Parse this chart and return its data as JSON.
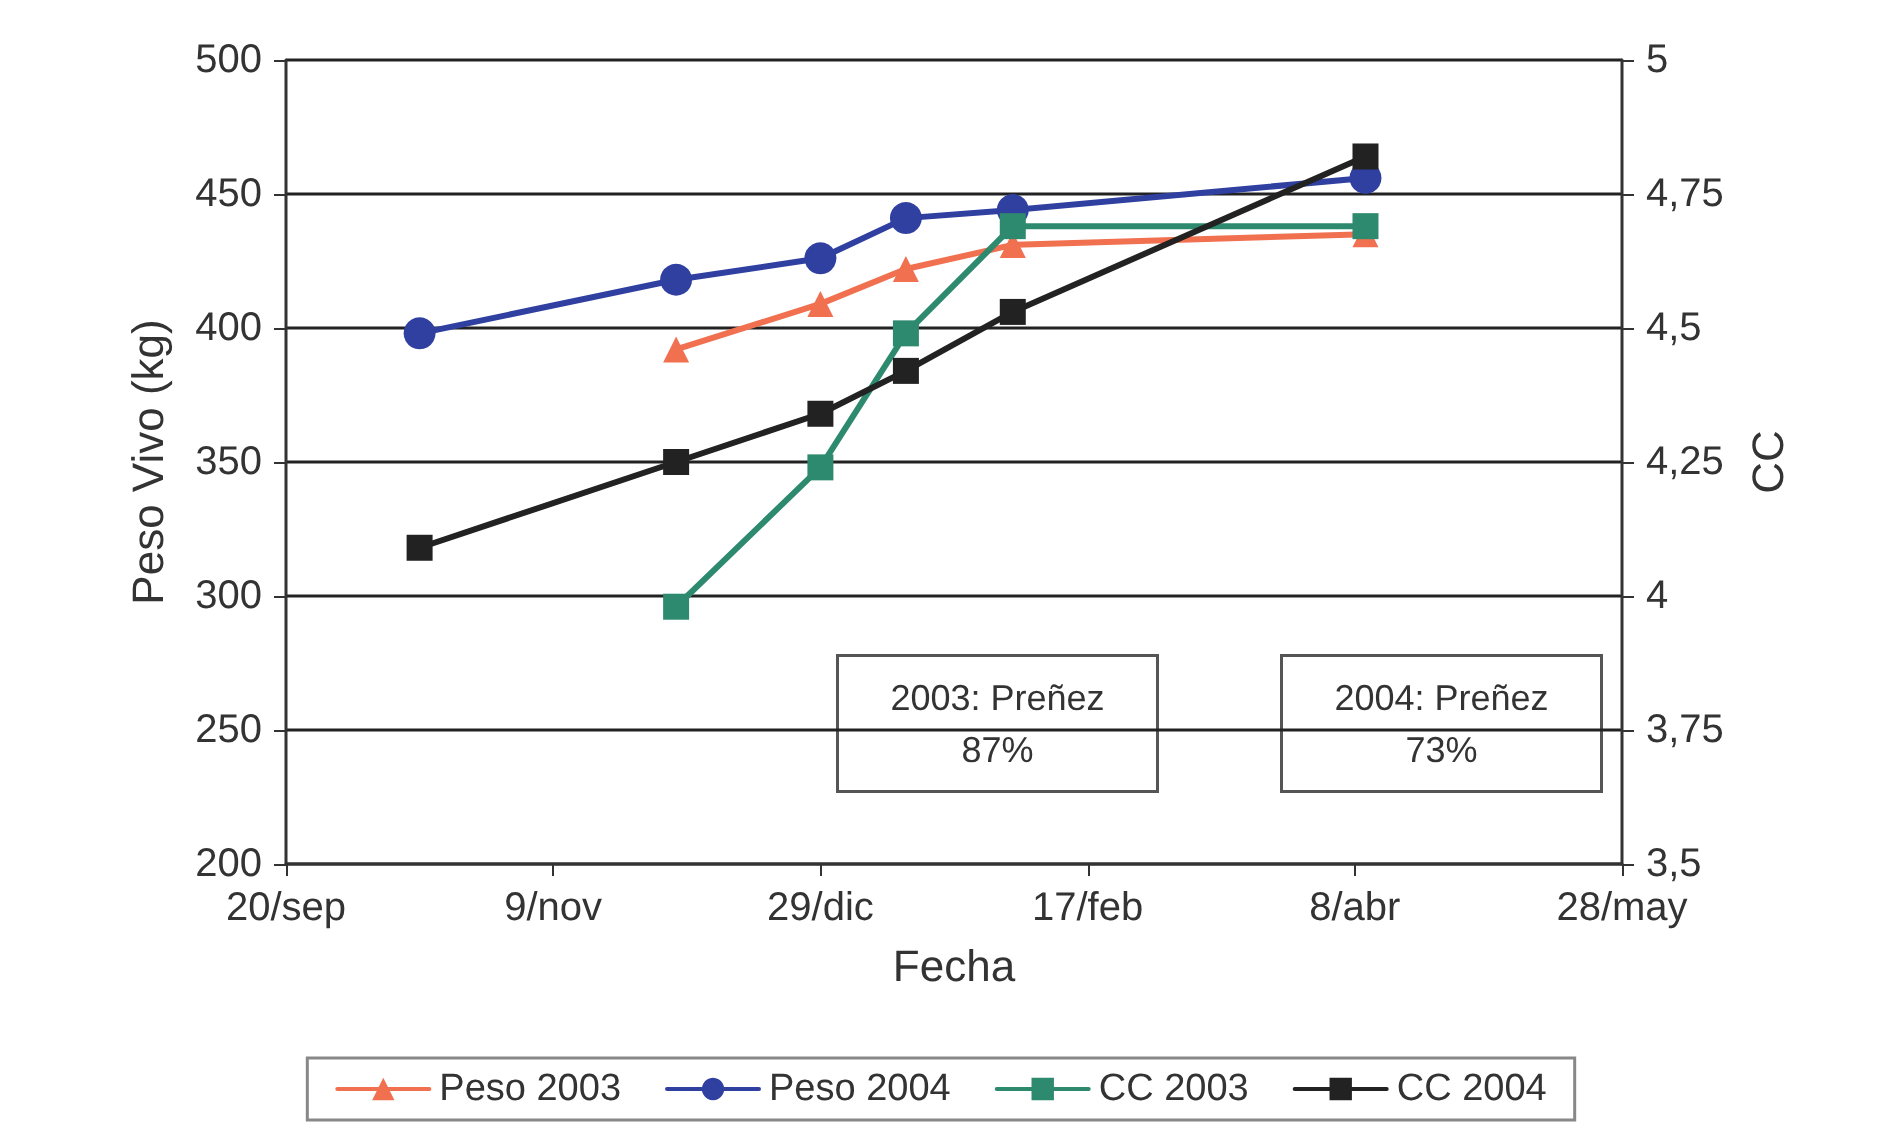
{
  "chart_data": {
    "type": "line",
    "xlabel": "Fecha",
    "ylabel": "Peso Vivo (kg)",
    "y2label": "CC",
    "xlim": [
      "2002-09-20",
      "2003-05-28"
    ],
    "xticks": [
      {
        "value": "2002-09-20",
        "label": "20/sep"
      },
      {
        "value": "2002-11-09",
        "label": "9/nov"
      },
      {
        "value": "2002-12-29",
        "label": "29/dic"
      },
      {
        "value": "2003-02-17",
        "label": "17/feb"
      },
      {
        "value": "2003-04-08",
        "label": "8/abr"
      },
      {
        "value": "2003-05-28",
        "label": "28/may"
      }
    ],
    "ylim": [
      200,
      500
    ],
    "yticks": [
      200,
      250,
      300,
      350,
      400,
      450,
      500
    ],
    "y2lim": [
      3.5,
      5
    ],
    "y2ticks": [
      {
        "value": 3.5,
        "label": "3,5"
      },
      {
        "value": 3.75,
        "label": "3,75"
      },
      {
        "value": 4,
        "label": "4"
      },
      {
        "value": 4.25,
        "label": "4,25"
      },
      {
        "value": 4.5,
        "label": "4,5"
      },
      {
        "value": 4.75,
        "label": "4,75"
      },
      {
        "value": 5,
        "label": "5"
      }
    ],
    "grid": "y",
    "legend": "bottom",
    "line_style": "solid",
    "annotations": [
      "2003: Preñez\n87%",
      "2004: Preñez\n73%"
    ],
    "series": [
      {
        "name": "Peso 2003",
        "color": "#f07050",
        "marker": "triangle",
        "x": [
          "2002-12-02",
          "2002-12-29",
          "2003-01-14",
          "2003-02-03",
          "2003-04-10"
        ],
        "values": [
          392,
          409,
          422,
          431,
          435
        ]
      },
      {
        "name": "Peso 2004",
        "color": "#3040a0",
        "marker": "circle",
        "x": [
          "2002-10-15",
          "2002-12-02",
          "2002-12-29",
          "2003-01-14",
          "2003-02-03",
          "2003-04-10"
        ],
        "values": [
          398,
          418,
          426,
          441,
          444,
          456
        ]
      },
      {
        "name": "CC 2003",
        "color": "#2e8a6e",
        "marker": "square",
        "axis": "y2",
        "x": [
          "2002-12-02",
          "2002-12-29",
          "2003-01-14",
          "2003-02-03",
          "2003-04-10"
        ],
        "values": [
          3.98,
          4.24,
          4.49,
          4.69,
          4.69
        ]
      },
      {
        "name": "CC 2004",
        "color": "#222222",
        "marker": "square",
        "axis": "y2",
        "x": [
          "2002-10-15",
          "2002-12-02",
          "2002-12-29",
          "2003-01-14",
          "2003-02-03",
          "2003-04-10"
        ],
        "values": [
          4.09,
          4.25,
          4.34,
          4.42,
          4.53,
          4.82
        ]
      }
    ]
  }
}
